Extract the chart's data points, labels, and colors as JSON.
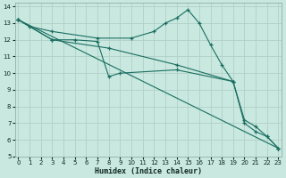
{
  "xlabel": "Humidex (Indice chaleur)",
  "bg_color": "#c8e8e0",
  "grid_color": "#b0d0c8",
  "line_color": "#1a6e60",
  "marker": "+",
  "series": [
    {
      "x": [
        0,
        1,
        3,
        7,
        10,
        12,
        13,
        14,
        15,
        16,
        17,
        18,
        19
      ],
      "y": [
        13.2,
        12.8,
        12.5,
        12.1,
        12.1,
        12.5,
        13.0,
        13.3,
        13.8,
        13.0,
        11.7,
        10.5,
        9.5
      ]
    },
    {
      "x": [
        0,
        3,
        5,
        7,
        8,
        9,
        14,
        19,
        20,
        21,
        22,
        23
      ],
      "y": [
        13.2,
        12.0,
        12.0,
        11.9,
        9.8,
        10.0,
        10.2,
        9.5,
        7.0,
        6.5,
        6.2,
        5.5
      ]
    },
    {
      "x": [
        0,
        3,
        8,
        14,
        19,
        20,
        21,
        22,
        23
      ],
      "y": [
        13.2,
        12.0,
        11.5,
        10.5,
        9.5,
        7.2,
        6.8,
        6.2,
        5.5
      ]
    },
    {
      "x": [
        0,
        23
      ],
      "y": [
        13.2,
        5.5
      ]
    }
  ],
  "xlim": [
    -0.3,
    23.3
  ],
  "ylim": [
    5,
    14.2
  ],
  "xticks": [
    0,
    1,
    2,
    3,
    4,
    5,
    6,
    7,
    8,
    9,
    10,
    11,
    12,
    13,
    14,
    15,
    16,
    17,
    18,
    19,
    20,
    21,
    22,
    23
  ],
  "yticks": [
    5,
    6,
    7,
    8,
    9,
    10,
    11,
    12,
    13,
    14
  ],
  "tick_fontsize": 5.0,
  "label_fontsize": 6.0
}
